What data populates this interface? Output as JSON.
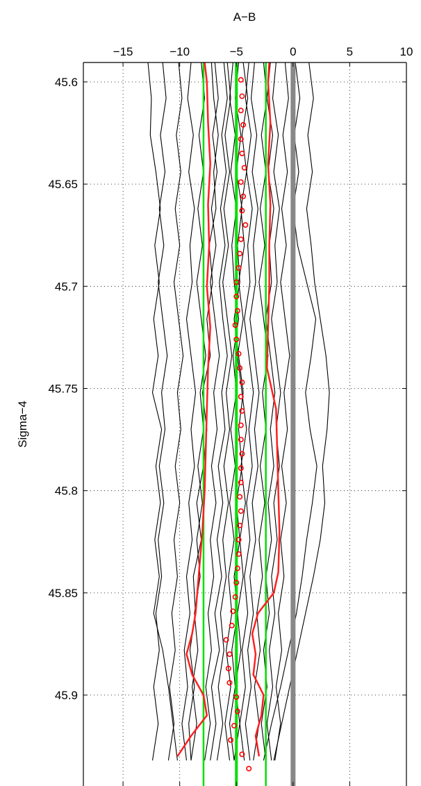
{
  "chart_data": {
    "type": "line",
    "xlabel": "A−B",
    "ylabel": "Sigma−4",
    "xlim": [
      -18.5,
      10
    ],
    "ylim": [
      45.9445,
      45.5905
    ],
    "y_reversed": true,
    "x_axis_position": "top",
    "grid": "dotted",
    "x_ticks": [
      {
        "value": -15,
        "label": "−15"
      },
      {
        "value": -10,
        "label": "−10"
      },
      {
        "value": -5,
        "label": "−5"
      },
      {
        "value": 0,
        "label": "0"
      },
      {
        "value": 5,
        "label": "5"
      },
      {
        "value": 10,
        "label": "10"
      }
    ],
    "y_ticks": [
      {
        "value": 45.6,
        "label": "45.6"
      },
      {
        "value": 45.65,
        "label": "45.65"
      },
      {
        "value": 45.7,
        "label": "45.7"
      },
      {
        "value": 45.75,
        "label": "45.75"
      },
      {
        "value": 45.8,
        "label": "45.8"
      },
      {
        "value": 45.85,
        "label": "45.85"
      },
      {
        "value": 45.9,
        "label": "45.9"
      }
    ],
    "colors": {
      "profiles": "#000000",
      "envelope": "#ff2020",
      "mean_markers": "#ff0000",
      "reference_lines": "#00e000",
      "zero_line": "#888888"
    },
    "reference_lines": [
      {
        "name": "green-low",
        "x": -7.9
      },
      {
        "name": "green-mid",
        "x": -5.0
      },
      {
        "name": "green-high",
        "x": -2.4
      }
    ],
    "zero_line": {
      "x": 0
    },
    "envelope_low": {
      "y": [
        45.5905,
        45.6,
        45.62,
        45.64,
        45.66,
        45.68,
        45.7,
        45.72,
        45.74,
        45.76,
        45.78,
        45.8,
        45.82,
        45.84,
        45.86,
        45.87,
        45.88,
        45.89,
        45.9,
        45.91,
        45.92,
        45.93
      ],
      "x": [
        -7.8,
        -7.6,
        -7.5,
        -7.3,
        -7.5,
        -7.4,
        -7.6,
        -7.3,
        -7.5,
        -7.6,
        -7.7,
        -7.8,
        -8.0,
        -8.3,
        -8.6,
        -8.9,
        -9.4,
        -8.9,
        -7.9,
        -7.6,
        -9.0,
        -10.2
      ]
    },
    "envelope_high": {
      "y": [
        45.5905,
        45.6,
        45.62,
        45.64,
        45.66,
        45.68,
        45.7,
        45.72,
        45.74,
        45.76,
        45.78,
        45.8,
        45.82,
        45.84,
        45.85,
        45.86,
        45.87,
        45.88,
        45.89,
        45.9,
        45.91,
        45.92,
        45.93
      ],
      "x": [
        -2.1,
        -2.2,
        -2.0,
        -2.2,
        -2.0,
        -2.1,
        -2.1,
        -2.2,
        -2.3,
        -1.5,
        -1.4,
        -1.3,
        -1.2,
        -1.3,
        -1.7,
        -3.1,
        -3.6,
        -3.3,
        -3.5,
        -2.6,
        -2.8,
        -3.3,
        -3.0
      ]
    },
    "mean_markers": {
      "y": [
        45.599,
        45.607,
        45.614,
        45.621,
        45.628,
        45.635,
        45.642,
        45.649,
        45.656,
        45.663,
        45.67,
        45.677,
        45.684,
        45.691,
        45.698,
        45.705,
        45.712,
        45.719,
        45.726,
        45.733,
        45.74,
        45.747,
        45.754,
        45.761,
        45.768,
        45.775,
        45.782,
        45.789,
        45.796,
        45.803,
        45.81,
        45.817,
        45.824,
        45.831,
        45.838,
        45.845,
        45.852,
        45.859,
        45.866,
        45.873,
        45.88,
        45.887,
        45.894,
        45.901,
        45.908,
        45.915,
        45.922,
        45.929,
        45.936
      ],
      "x": [
        -4.6,
        -4.5,
        -4.6,
        -4.4,
        -4.6,
        -4.5,
        -4.3,
        -4.6,
        -4.4,
        -4.5,
        -4.2,
        -4.6,
        -4.7,
        -4.8,
        -5.0,
        -5.0,
        -4.9,
        -5.1,
        -5.0,
        -4.8,
        -4.7,
        -4.5,
        -4.6,
        -4.5,
        -4.6,
        -4.6,
        -4.5,
        -4.6,
        -4.6,
        -4.7,
        -4.6,
        -4.7,
        -4.8,
        -4.8,
        -4.9,
        -5.0,
        -5.1,
        -5.3,
        -5.4,
        -5.9,
        -5.6,
        -5.7,
        -5.6,
        -5.0,
        -4.9,
        -5.2,
        -5.5,
        -4.5,
        -3.9
      ]
    },
    "series": [
      {
        "x": [
          -7.2,
          -7.0,
          -6.6,
          -7.0,
          -6.8,
          -7.4,
          -7.1,
          -7.6,
          -7.3,
          -8.0,
          -7.6,
          -7.9,
          -8.5,
          -8.1,
          -8.8,
          -8.6,
          -9.1,
          -8.7,
          -9.2,
          -9.0
        ]
      },
      {
        "x": [
          -6.1,
          -5.8,
          -6.3,
          -5.9,
          -6.4,
          -6.0,
          -6.5,
          -6.2,
          -5.8,
          -6.3,
          -6.0,
          -6.6,
          -6.2,
          -6.7,
          -6.3,
          -6.9,
          -6.5,
          -7.2,
          -6.8,
          -7.3
        ]
      },
      {
        "x": [
          -5.3,
          -5.6,
          -5.1,
          -5.5,
          -5.0,
          -5.4,
          -5.2,
          -4.8,
          -5.3,
          -5.0,
          -5.5,
          -5.1,
          -5.6,
          -5.2,
          -5.7,
          -5.4,
          -5.9,
          -5.5,
          -6.0,
          -5.6
        ]
      },
      {
        "x": [
          -4.4,
          -4.0,
          -4.5,
          -4.1,
          -4.6,
          -4.3,
          -4.8,
          -4.4,
          -4.9,
          -4.5,
          -4.1,
          -4.6,
          -4.2,
          -4.7,
          -4.4,
          -4.9,
          -4.6,
          -5.1,
          -4.7,
          -5.2
        ]
      },
      {
        "x": [
          -3.4,
          -3.7,
          -3.2,
          -3.6,
          -3.1,
          -3.5,
          -3.3,
          -3.8,
          -3.4,
          -3.0,
          -3.4,
          -3.1,
          -3.6,
          -3.3,
          -3.8,
          -3.5,
          -4.0,
          -3.7,
          -4.2,
          -3.8
        ]
      },
      {
        "x": [
          -2.6,
          -2.3,
          -2.8,
          -2.4,
          -2.9,
          -2.5,
          -3.0,
          -2.6,
          -2.2,
          -2.7,
          -2.4,
          -2.9,
          -2.5,
          -3.0,
          -2.7,
          -3.2,
          -2.9,
          -3.4,
          -3.0,
          -3.5
        ]
      },
      {
        "x": [
          -1.5,
          -1.8,
          -1.3,
          -1.7,
          -1.2,
          -1.6,
          -1.4,
          -1.9,
          -1.5,
          -1.1,
          -1.5,
          -1.2,
          -1.7,
          -1.4,
          -1.9,
          -1.6,
          -2.1,
          -1.8,
          -2.3,
          -1.9
        ]
      },
      {
        "x": [
          -0.7,
          -0.4,
          -0.9,
          -0.5,
          -1.0,
          -0.6,
          -1.1,
          -0.7,
          -0.3,
          -0.8,
          -0.5,
          -1.0,
          -0.6,
          -1.1,
          -0.8,
          -1.3,
          -1.0,
          -1.5,
          -1.1,
          -1.6
        ]
      },
      {
        "x": [
          -8.1,
          -7.8,
          -8.3,
          -7.9,
          -8.4,
          -8.0,
          -8.5,
          -8.1,
          -7.7,
          -8.2,
          -7.9,
          -8.4,
          -8.0,
          -8.5,
          -8.2,
          -8.7,
          -8.4,
          -8.9,
          -8.5,
          -9.0
        ]
      },
      {
        "x": [
          -9.0,
          -9.3,
          -8.8,
          -9.2,
          -8.7,
          -9.1,
          -8.9,
          -9.4,
          -9.0,
          -8.6,
          -9.0,
          -8.7,
          -9.2,
          -8.9,
          -9.4,
          -9.1,
          -9.6,
          -9.3,
          -9.8,
          -9.4
        ]
      },
      {
        "x": [
          -10.1,
          -9.8,
          -10.3,
          -9.9,
          -10.4,
          -10.0,
          -10.5,
          -10.1,
          -9.7,
          -10.2,
          -9.9,
          -10.4,
          -10.0,
          -10.5,
          -10.2,
          -10.7,
          -10.4,
          -10.9,
          -10.5,
          -11.0
        ]
      },
      {
        "x": [
          -12.8,
          -12.5,
          -12.6,
          -12.1,
          -11.7,
          -12.2,
          -11.8,
          -12.3,
          -11.9,
          -12.4,
          -11.6,
          -12.1,
          -11.7,
          -12.2,
          -11.8,
          -12.3,
          -11.5,
          -11.0,
          -10.6,
          -10.2
        ]
      },
      {
        "x": [
          -11.5,
          -11.2,
          -11.7,
          -11.3,
          -11.8,
          -11.4,
          -11.9,
          -11.5,
          -11.1,
          -11.6,
          -11.3,
          -11.8,
          -11.4,
          -11.9,
          -11.6,
          -12.1,
          -11.8,
          -12.3,
          -11.9,
          -12.4
        ]
      },
      {
        "x": [
          0.2,
          0.6,
          0.1,
          0.5,
          0.0,
          0.4,
          1.2,
          2.0,
          1.6,
          1.1,
          1.5,
          2.1,
          1.7,
          1.2,
          0.8,
          0.3,
          -0.4,
          -1.1,
          -1.9,
          -2.6
        ]
      },
      {
        "x": [
          1.4,
          1.8,
          1.3,
          1.7,
          1.2,
          1.6,
          1.9,
          2.4,
          2.9,
          3.2,
          3.0,
          2.6,
          2.8,
          2.4,
          1.8,
          1.1,
          0.4,
          -0.3,
          -1.0,
          -1.7
        ]
      },
      {
        "x": [
          -3.9,
          -4.2,
          -3.7,
          -4.1,
          -3.6,
          -4.0,
          -3.8,
          -4.3,
          -3.9,
          -3.5,
          -3.9,
          -3.6,
          -4.1,
          -3.8,
          -4.3,
          -4.0,
          -4.5,
          -4.2,
          -4.7,
          -4.3
        ]
      },
      {
        "x": [
          -5.8,
          -5.5,
          -6.0,
          -5.6,
          -6.1,
          -5.7,
          -6.2,
          -5.8,
          -5.4,
          -5.9,
          -5.6,
          -6.1,
          -5.7,
          -6.2,
          -5.9,
          -6.4,
          -6.1,
          -6.6,
          -6.2,
          -6.7
        ]
      },
      {
        "x": [
          -2.0,
          -2.3,
          -1.8,
          -2.2,
          -1.7,
          -2.1,
          -1.9,
          -2.4,
          -2.0,
          -1.6,
          -2.0,
          -1.7,
          -2.2,
          -1.9,
          -2.4,
          -2.1,
          -2.6,
          -2.3,
          -2.8,
          -2.4
        ]
      },
      {
        "x": [
          -6.9,
          -6.6,
          -7.1,
          -6.7,
          -7.2,
          -6.8,
          -7.3,
          -6.9,
          -6.5,
          -7.0,
          -6.7,
          -7.2,
          -6.8,
          -7.3,
          -7.0,
          -7.5,
          -7.2,
          -7.7,
          -7.3,
          -7.8
        ]
      },
      {
        "x": [
          -4.8,
          -5.1,
          -4.6,
          -5.0,
          -4.5,
          -4.9,
          -4.7,
          -5.2,
          -4.8,
          -4.4,
          -4.8,
          -4.5,
          -5.0,
          -4.7,
          -5.2,
          -4.9,
          -5.4,
          -5.1,
          -5.6,
          -5.2
        ]
      }
    ],
    "series_y": [
      45.5905,
      45.608,
      45.626,
      45.644,
      45.662,
      45.68,
      45.698,
      45.716,
      45.734,
      45.752,
      45.77,
      45.788,
      45.806,
      45.824,
      45.842,
      45.86,
      45.878,
      45.896,
      45.914,
      45.932
    ]
  }
}
